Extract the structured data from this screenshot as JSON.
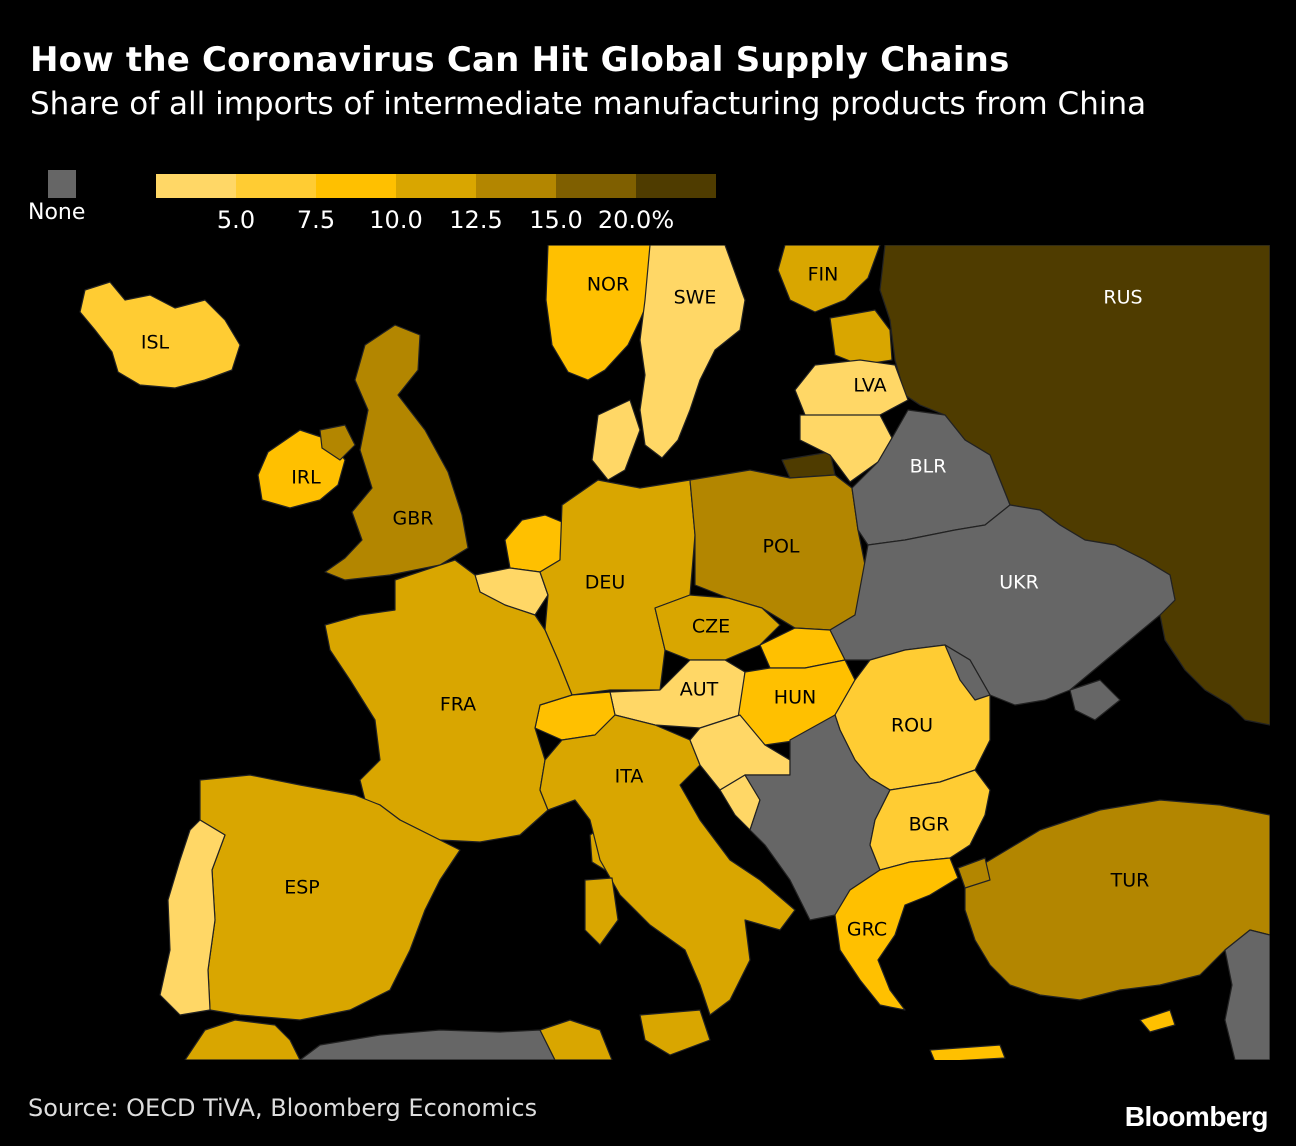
{
  "title": "How the Coronavirus Can Hit Global Supply Chains",
  "subtitle": "Share of all imports of intermediate manufacturing products from China",
  "legend": {
    "none_label": "None",
    "none_color": "#666666",
    "swatches": [
      "#FFD766",
      "#FFCC33",
      "#FFC000",
      "#D9A600",
      "#B38600",
      "#7F5F00",
      "#4F3C00"
    ],
    "ticks": [
      "5.0",
      "7.5",
      "10.0",
      "12.5",
      "15.0",
      "20.0%"
    ]
  },
  "countries": [
    {
      "code": "ISL",
      "color": "#FFCC33"
    },
    {
      "code": "NOR",
      "color": "#FFC000"
    },
    {
      "code": "SWE",
      "color": "#FFD766"
    },
    {
      "code": "FIN",
      "color": "#D9A600"
    },
    {
      "code": "RUS",
      "color": "#4F3C00"
    },
    {
      "code": "LVA",
      "color": "#FFD766"
    },
    {
      "code": "IRL",
      "color": "#FFC000"
    },
    {
      "code": "GBR",
      "color": "#B38600"
    },
    {
      "code": "BLR",
      "color": "#666666"
    },
    {
      "code": "DEU",
      "color": "#D9A600"
    },
    {
      "code": "POL",
      "color": "#B38600"
    },
    {
      "code": "UKR",
      "color": "#666666"
    },
    {
      "code": "CZE",
      "color": "#D9A600"
    },
    {
      "code": "FRA",
      "color": "#D9A600"
    },
    {
      "code": "AUT",
      "color": "#FFD766"
    },
    {
      "code": "HUN",
      "color": "#FFC000"
    },
    {
      "code": "ROU",
      "color": "#FFCC33"
    },
    {
      "code": "ITA",
      "color": "#D9A600"
    },
    {
      "code": "BGR",
      "color": "#FFCC33"
    },
    {
      "code": "ESP",
      "color": "#D9A600"
    },
    {
      "code": "TUR",
      "color": "#B38600"
    },
    {
      "code": "GRC",
      "color": "#FFC000"
    }
  ],
  "source": "Source: OECD TiVA, Bloomberg Economics",
  "brand": "Bloomberg"
}
